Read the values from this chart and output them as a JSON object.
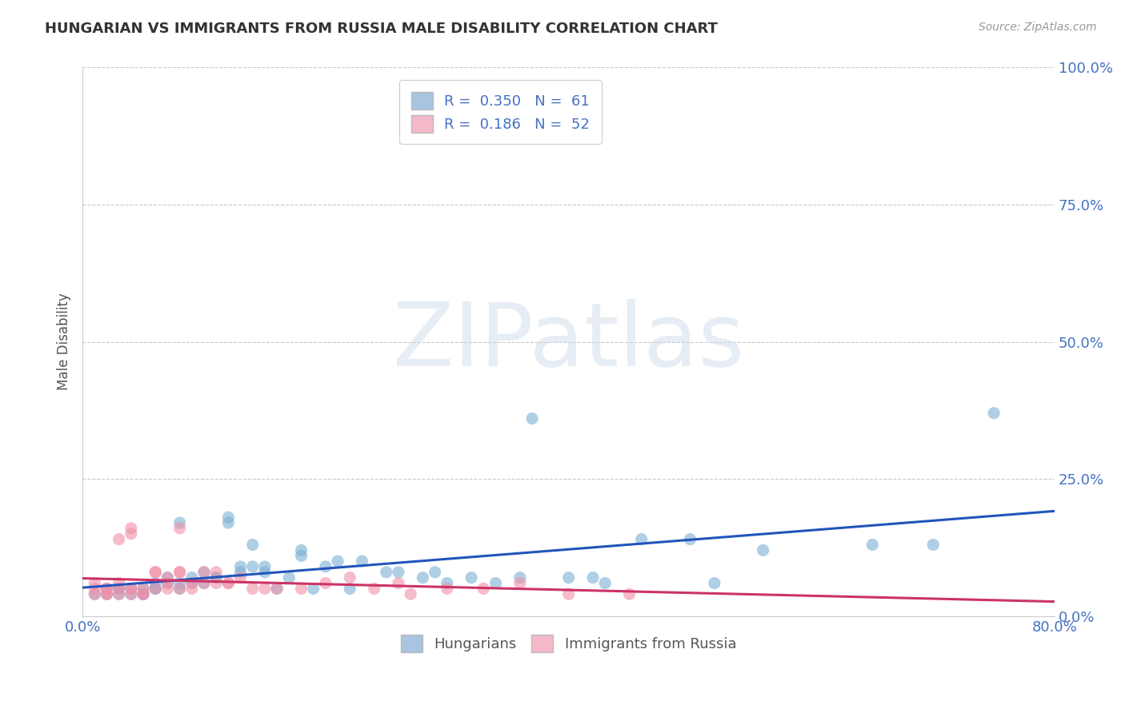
{
  "title": "HUNGARIAN VS IMMIGRANTS FROM RUSSIA MALE DISABILITY CORRELATION CHART",
  "source_text": "Source: ZipAtlas.com",
  "xlim": [
    0.0,
    0.8
  ],
  "ylim": [
    0.0,
    1.0
  ],
  "yticks": [
    0.0,
    0.25,
    0.5,
    0.75,
    1.0
  ],
  "xticks": [
    0.0,
    0.1,
    0.2,
    0.3,
    0.4,
    0.5,
    0.6,
    0.7,
    0.8
  ],
  "watermark": "ZIPatlas",
  "series": [
    {
      "name": "Hungarians",
      "color": "#7ab0d4",
      "regression_color": "#2255bb",
      "R": 0.35,
      "N": 61,
      "x": [
        0.01,
        0.02,
        0.02,
        0.03,
        0.03,
        0.03,
        0.04,
        0.04,
        0.05,
        0.05,
        0.05,
        0.06,
        0.06,
        0.06,
        0.07,
        0.07,
        0.08,
        0.08,
        0.08,
        0.09,
        0.09,
        0.1,
        0.1,
        0.11,
        0.11,
        0.12,
        0.12,
        0.13,
        0.13,
        0.14,
        0.14,
        0.15,
        0.15,
        0.16,
        0.17,
        0.18,
        0.18,
        0.19,
        0.2,
        0.21,
        0.22,
        0.23,
        0.25,
        0.26,
        0.28,
        0.29,
        0.3,
        0.32,
        0.34,
        0.36,
        0.37,
        0.4,
        0.42,
        0.43,
        0.46,
        0.5,
        0.52,
        0.56,
        0.65,
        0.7,
        0.75
      ],
      "y": [
        0.04,
        0.05,
        0.04,
        0.05,
        0.04,
        0.05,
        0.05,
        0.04,
        0.05,
        0.04,
        0.04,
        0.05,
        0.05,
        0.06,
        0.06,
        0.07,
        0.05,
        0.06,
        0.17,
        0.06,
        0.07,
        0.06,
        0.08,
        0.07,
        0.07,
        0.17,
        0.18,
        0.08,
        0.09,
        0.09,
        0.13,
        0.08,
        0.09,
        0.05,
        0.07,
        0.12,
        0.11,
        0.05,
        0.09,
        0.1,
        0.05,
        0.1,
        0.08,
        0.08,
        0.07,
        0.08,
        0.06,
        0.07,
        0.06,
        0.07,
        0.36,
        0.07,
        0.07,
        0.06,
        0.14,
        0.14,
        0.06,
        0.12,
        0.13,
        0.13,
        0.37
      ]
    },
    {
      "name": "Immigrants from Russia",
      "color": "#f090a8",
      "regression_color": "#cc3366",
      "R": 0.186,
      "N": 52,
      "x": [
        0.01,
        0.01,
        0.01,
        0.02,
        0.02,
        0.02,
        0.02,
        0.03,
        0.03,
        0.03,
        0.03,
        0.04,
        0.04,
        0.04,
        0.04,
        0.04,
        0.05,
        0.05,
        0.05,
        0.06,
        0.06,
        0.06,
        0.07,
        0.07,
        0.07,
        0.08,
        0.08,
        0.08,
        0.08,
        0.09,
        0.09,
        0.1,
        0.1,
        0.11,
        0.11,
        0.12,
        0.12,
        0.13,
        0.14,
        0.15,
        0.16,
        0.18,
        0.2,
        0.22,
        0.24,
        0.26,
        0.27,
        0.3,
        0.33,
        0.36,
        0.4,
        0.45
      ],
      "y": [
        0.05,
        0.04,
        0.06,
        0.05,
        0.04,
        0.05,
        0.04,
        0.14,
        0.05,
        0.04,
        0.06,
        0.16,
        0.15,
        0.05,
        0.05,
        0.04,
        0.05,
        0.04,
        0.04,
        0.05,
        0.08,
        0.08,
        0.05,
        0.06,
        0.07,
        0.08,
        0.08,
        0.05,
        0.16,
        0.06,
        0.05,
        0.08,
        0.06,
        0.08,
        0.06,
        0.06,
        0.06,
        0.07,
        0.05,
        0.05,
        0.05,
        0.05,
        0.06,
        0.07,
        0.05,
        0.06,
        0.04,
        0.05,
        0.05,
        0.06,
        0.04,
        0.04
      ]
    }
  ],
  "background_color": "#ffffff",
  "plot_bg_color": "#ffffff",
  "grid_color": "#bbbbbb",
  "title_color": "#333333",
  "axis_label_color": "#555555",
  "tick_label_color": "#4472c4",
  "ylabel": "Male Disability",
  "xlabel": ""
}
